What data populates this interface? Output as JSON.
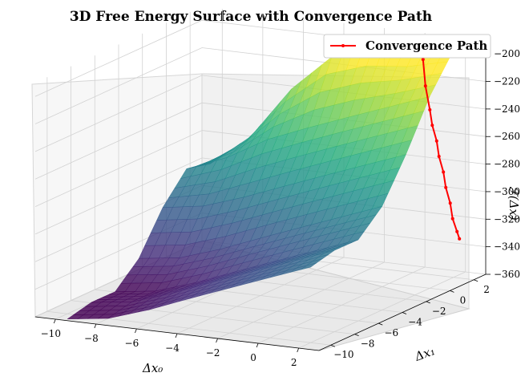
{
  "chart_data": {
    "type": "surface3d",
    "title": "3D Free Energy Surface with Convergence Path",
    "xlabel": "Δx₀",
    "ylabel": "Δx₁",
    "zlabel": "ℱ(Δx)",
    "xlim": [
      -11,
      3
    ],
    "ylim": [
      -11,
      3
    ],
    "zlim": [
      -360,
      -190
    ],
    "x_ticks": [
      -10,
      -8,
      -6,
      -4,
      -2,
      0,
      2
    ],
    "y_ticks": [
      -10,
      -8,
      -6,
      -4,
      -2,
      0,
      2
    ],
    "z_ticks": [
      -360,
      -340,
      -320,
      -300,
      -280,
      -260,
      -240,
      -220,
      -200
    ],
    "x_tick_labels": [
      "−10",
      "−8",
      "−6",
      "−4",
      "−2",
      "0",
      "2"
    ],
    "y_tick_labels": [
      "−10",
      "−8",
      "−6",
      "−4",
      "−2",
      "0",
      "2"
    ],
    "z_tick_labels": [
      "−360",
      "−340",
      "−320",
      "−300",
      "−280",
      "−260",
      "−240",
      "−220",
      "−200"
    ],
    "colormap": "viridis",
    "legend": {
      "label": "Convergence Path",
      "color": "#ff0000",
      "location": "top-right"
    },
    "surface_values": [
      [
        -363.8,
        -359.6,
        -359.8,
        -343.5,
        -314.5,
        -294.3,
        -298.6
      ],
      [
        -359.9,
        -355.7,
        -355.8,
        -339.6,
        -309.9,
        -282.6,
        -275.1
      ],
      [
        -350.2,
        -346.0,
        -346.1,
        -329.9,
        -300.0,
        -266.0,
        -237.2
      ],
      [
        -338.6,
        -334.4,
        -334.5,
        -318.3,
        -288.5,
        -254.0,
        -210.3
      ],
      [
        -327.4,
        -323.1,
        -323.2,
        -307.0,
        -277.2,
        -242.8,
        -201.1
      ],
      [
        -316.2,
        -312.0,
        -312.1,
        -295.9,
        -266.1,
        -231.8,
        -200.8
      ],
      [
        -305.2,
        -300.9,
        -301.1,
        -284.8,
        -255.1,
        -220.8,
        -195.1
      ]
    ],
    "path_x": [
      2.7,
      2.7,
      2.6,
      2.6,
      2.5,
      2.5,
      2.4,
      2.4,
      2.3,
      2.3,
      2.2,
      2.2
    ],
    "path_y": [
      1.3,
      1.1,
      0.9,
      0.7,
      0.5,
      0.3,
      0.1,
      -0.1,
      -0.3,
      -0.5,
      -0.7,
      -0.9
    ],
    "path_z": [
      -328,
      -322,
      -312,
      -300,
      -288,
      -276,
      -264,
      -252,
      -240,
      -228,
      -210,
      -190
    ]
  }
}
